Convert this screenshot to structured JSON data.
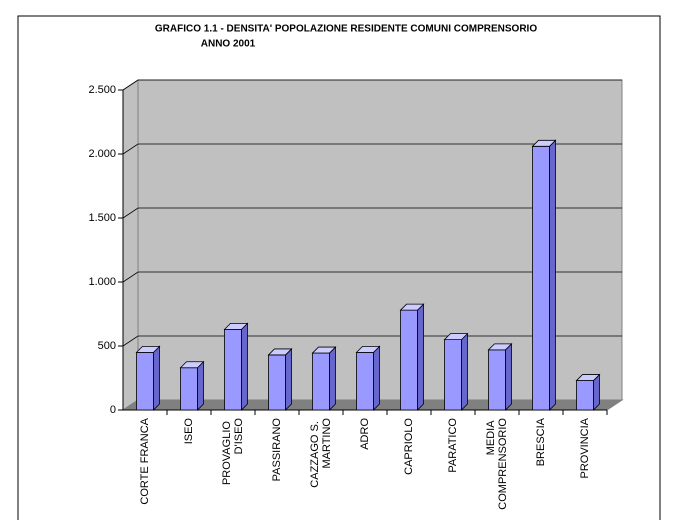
{
  "chart_data": {
    "type": "bar3d",
    "title": "GRAFICO 1.1 - DENSITA' POPOLAZIONE RESIDENTE COMUNI COMPRENSORIO",
    "subtitle": "ANNO 2001",
    "categories": [
      "CORTE FRANCA",
      "ISEO",
      "PROVAGLIO D'ISEO",
      "PASSIRANO",
      "CAZZAGO S. MARTINO",
      "ADRO",
      "CAPRIOLO",
      "PARATICO",
      "MEDIA COMPRENSORIO",
      "BRESCIA",
      "PROVINCIA"
    ],
    "values": [
      450,
      330,
      630,
      430,
      445,
      450,
      780,
      550,
      470,
      2060,
      230
    ],
    "color": "#9999ff",
    "ylim": [
      0,
      2500
    ],
    "yticks": [
      0,
      500,
      {
        "value": 1000,
        "label": "1.000"
      },
      {
        "value": 1500,
        "label": "1.500"
      },
      {
        "value": 2000,
        "label": "2.000"
      },
      {
        "value": 2500,
        "label": "2.500"
      }
    ],
    "grid": true
  }
}
